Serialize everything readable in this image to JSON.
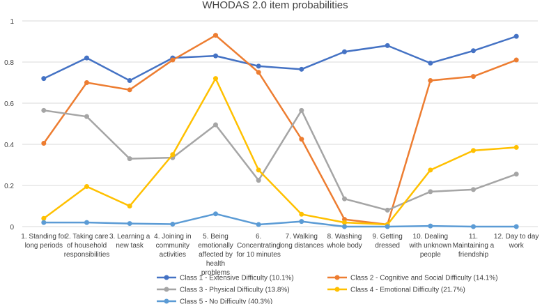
{
  "chart_data": {
    "type": "line",
    "title": "WHODAS 2.0 item probabilities",
    "xlabel": "",
    "ylabel": "",
    "ylim": [
      0,
      1
    ],
    "yticks": [
      "0",
      "0.2",
      "0.4",
      "0.6",
      "0.8",
      "1"
    ],
    "ytick_values": [
      0,
      0.2,
      0.4,
      0.6,
      0.8,
      1
    ],
    "grid": true,
    "legend_position": "bottom",
    "categories": [
      [
        "1. Standing for",
        "long periods"
      ],
      [
        "2. Taking care",
        "of household",
        "responsibilities"
      ],
      [
        "3. Learning a",
        "new task"
      ],
      [
        "4. Joining in",
        "community",
        "activities"
      ],
      [
        "5. Being",
        "emotionally",
        "affected by",
        "health",
        "problems"
      ],
      [
        "6.",
        "Concentrating",
        "for 10 minutes"
      ],
      [
        "7. Walking",
        "long distances"
      ],
      [
        "8. Washing",
        "whole body"
      ],
      [
        "9. Getting",
        "dressed"
      ],
      [
        "10. Dealing",
        "with unknown",
        "people"
      ],
      [
        "11.",
        "Maintaining a",
        "friendship"
      ],
      [
        "12. Day to day",
        "work"
      ]
    ],
    "series": [
      {
        "name": "Class 1 - Extensive Difficulty (10.1%)",
        "color": "#4472c4",
        "values": [
          0.72,
          0.82,
          0.71,
          0.82,
          0.83,
          0.78,
          0.765,
          0.85,
          0.88,
          0.795,
          0.855,
          0.925
        ]
      },
      {
        "name": "Class 2 - Cognitive and Social Difficulty (14.1%)",
        "color": "#ed7d31",
        "values": [
          0.405,
          0.7,
          0.665,
          0.81,
          0.93,
          0.75,
          0.425,
          0.035,
          0.01,
          0.71,
          0.73,
          0.81
        ]
      },
      {
        "name": "Class 3 - Physical Difficulty (13.8%)",
        "color": "#a5a5a5",
        "values": [
          0.565,
          0.535,
          0.33,
          0.335,
          0.495,
          0.225,
          0.565,
          0.135,
          0.08,
          0.17,
          0.18,
          0.255
        ]
      },
      {
        "name": "Class 4 - Emotional Difficulty (21.7%)",
        "color": "#ffc000",
        "values": [
          0.04,
          0.195,
          0.1,
          0.35,
          0.72,
          0.275,
          0.06,
          0.02,
          0.01,
          0.275,
          0.37,
          0.385
        ]
      },
      {
        "name": "Class 5 - No Difficulty (40.3%)",
        "color": "#5b9bd5",
        "values": [
          0.02,
          0.02,
          0.015,
          0.012,
          0.062,
          0.01,
          0.025,
          0.0,
          0.0,
          0.003,
          0.0,
          0.0
        ]
      }
    ]
  }
}
